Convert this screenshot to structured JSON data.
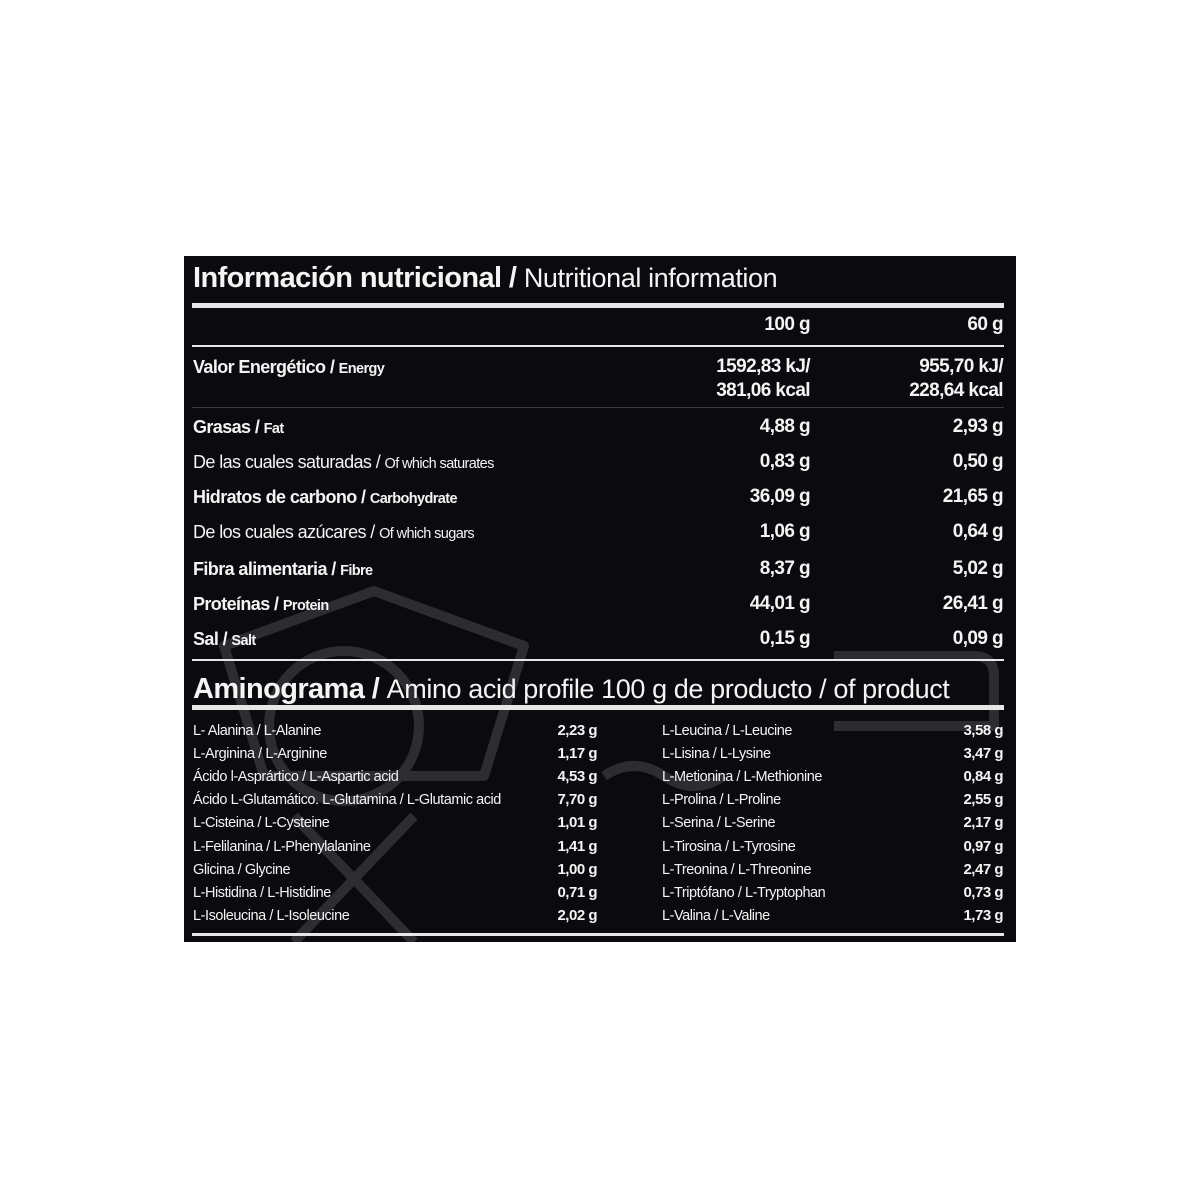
{
  "nutrition": {
    "title_es": "Información nutricional /",
    "title_en": "Nutritional information",
    "columns": [
      "100 g",
      "60 g"
    ],
    "rows": [
      {
        "es": "Valor Energético / ",
        "en": "Energy",
        "bold": true,
        "v100": "1592,83 kJ/\n381,06 kcal",
        "v60": "955,70 kJ/\n228,64 kcal"
      },
      {
        "es": "Grasas / ",
        "en": "Fat",
        "bold": true,
        "v100": "4,88 g",
        "v60": "2,93 g"
      },
      {
        "es": "De las cuales saturadas / ",
        "en": "Of which saturates",
        "bold": false,
        "v100": "0,83 g",
        "v60": "0,50 g"
      },
      {
        "es": "Hidratos de carbono / ",
        "en": "Carbohydrate",
        "bold": true,
        "v100": "36,09 g",
        "v60": "21,65 g"
      },
      {
        "es": "De los cuales azúcares / ",
        "en": "Of which sugars",
        "bold": false,
        "v100": "1,06 g",
        "v60": "0,64 g"
      },
      {
        "es": "Fibra alimentaria / ",
        "en": "Fibre",
        "bold": true,
        "v100": "8,37 g",
        "v60": "5,02 g"
      },
      {
        "es": "Proteínas / ",
        "en": "Protein",
        "bold": true,
        "v100": "44,01 g",
        "v60": "26,41 g"
      },
      {
        "es": "Sal / ",
        "en": "Salt",
        "bold": true,
        "v100": "0,15 g",
        "v60": "0,09 g"
      }
    ]
  },
  "aminogram": {
    "title_es": "Aminograma /",
    "title_en": "Amino acid profile 100 g de producto / of product",
    "left": [
      {
        "name": "L- Alanina / L-Alanine",
        "value": "2,23 g"
      },
      {
        "name": "L-Arginina / L-Arginine",
        "value": "1,17 g"
      },
      {
        "name": "Ácido l-Asprártico / L-Aspartic acid",
        "value": "4,53 g"
      },
      {
        "name": "Ácido L-Glutamático. L-Glutamina / L-Glutamic acid",
        "value": "7,70 g"
      },
      {
        "name": "L-Cisteina / L-Cysteine",
        "value": "1,01 g"
      },
      {
        "name": "L-Felilanina / L-Phenylalanine",
        "value": "1,41 g"
      },
      {
        "name": "Glicina / Glycine",
        "value": "1,00 g"
      },
      {
        "name": "L-Histidina / L-Histidine",
        "value": "0,71 g"
      },
      {
        "name": "L-Isoleucina / L-Isoleucine",
        "value": "2,02 g"
      }
    ],
    "right": [
      {
        "name": "L-Leucina / L-Leucine",
        "value": "3,58 g"
      },
      {
        "name": "L-Lisina / L-Lysine",
        "value": "3,47 g"
      },
      {
        "name": "L-Metionina / L-Methionine",
        "value": "0,84 g"
      },
      {
        "name": "L-Prolina / L-Proline",
        "value": "2,55 g"
      },
      {
        "name": "L-Serina / L-Serine",
        "value": "2,17 g"
      },
      {
        "name": "L-Tirosina / L-Tyrosine",
        "value": "0,97 g"
      },
      {
        "name": "L-Treonina / L-Threonine",
        "value": "2,47 g"
      },
      {
        "name": "L-Triptófano / L-Tryptophan",
        "value": "0,73 g"
      },
      {
        "name": "L-Valina / L-Valine",
        "value": "1,73 g"
      }
    ]
  },
  "colors": {
    "background": "#0b0b0f",
    "text": "#f4f4f4",
    "rule": "#e6e6e6"
  }
}
